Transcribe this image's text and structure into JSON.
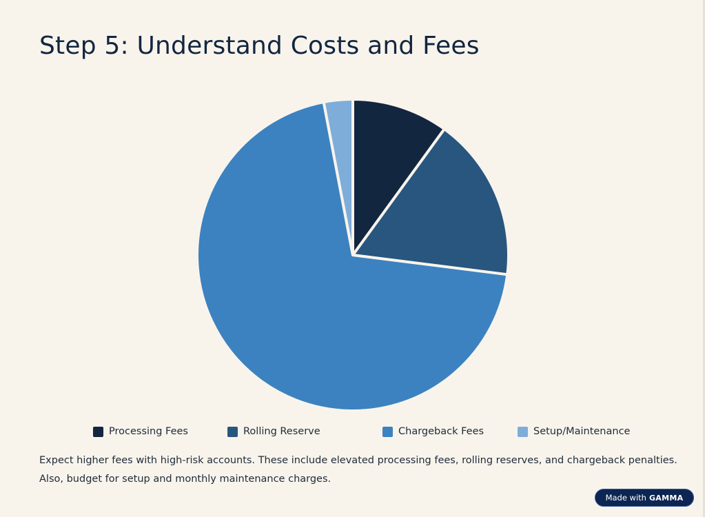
{
  "title": "Step 5: Understand Costs and Fees",
  "chart_data": {
    "type": "pie",
    "title": "",
    "categories": [
      "Processing Fees",
      "Rolling Reserve",
      "Chargeback Fees",
      "Setup/Maintenance"
    ],
    "values": [
      10,
      17,
      70,
      3
    ],
    "colors": [
      "#13263f",
      "#28567f",
      "#3c82c0",
      "#7eadd9"
    ],
    "legend_position": "bottom"
  },
  "description": {
    "line1": "Expect higher fees with high-risk accounts. These include elevated processing fees, rolling reserves, and chargeback penalties.",
    "line2": "Also, budget for setup and monthly maintenance charges."
  },
  "badge": {
    "made_with": "Made with",
    "brand": "GAMMA"
  }
}
